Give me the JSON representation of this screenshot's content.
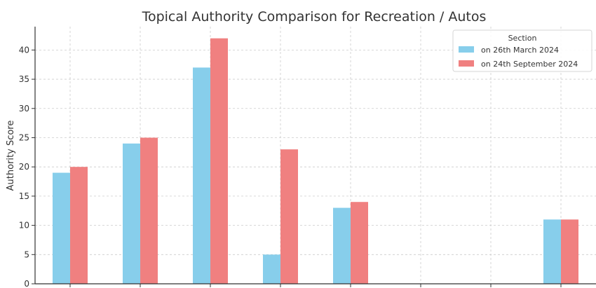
{
  "chart_data": {
    "type": "bar",
    "title": "Topical Authority Comparison for Recreation / Autos",
    "xlabel": "",
    "ylabel": "Authority Score",
    "ylim": [
      0,
      44
    ],
    "yticks": [
      0,
      5,
      10,
      15,
      20,
      25,
      30,
      35,
      40
    ],
    "categories": [
      "",
      "",
      "",
      "",
      "",
      "",
      "",
      ""
    ],
    "grid": true,
    "legend": {
      "title": "Section",
      "placement": "top-right"
    },
    "series": [
      {
        "name": "on 26th March 2024",
        "color": "#87CEEB",
        "values": [
          19,
          24,
          37,
          5,
          13,
          0,
          0,
          11
        ]
      },
      {
        "name": "on 24th September 2024",
        "color": "#F08080",
        "values": [
          20,
          25,
          42,
          23,
          14,
          0,
          0,
          11
        ]
      }
    ]
  }
}
